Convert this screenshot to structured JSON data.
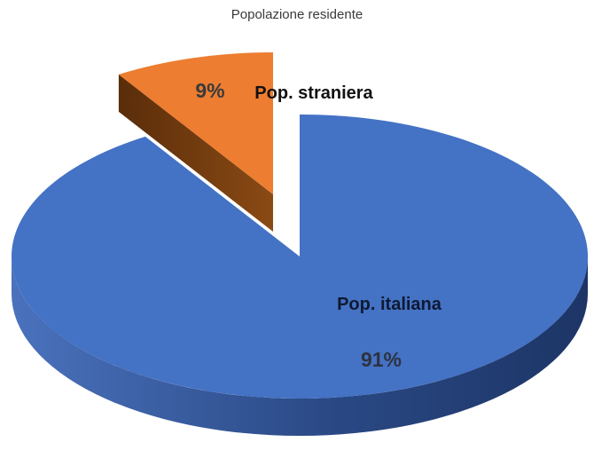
{
  "chart_data": {
    "type": "pie",
    "title": "Popolazione residente",
    "categories": [
      "Pop. straniera",
      "Pop. italiana"
    ],
    "values": [
      9,
      91
    ],
    "value_labels": [
      "9%",
      "91%"
    ],
    "unit": "%",
    "style": "3d-exploded",
    "exploded": "Pop. straniera",
    "colors": [
      "#ED7D31",
      "#4472C4"
    ],
    "legend": "none"
  }
}
